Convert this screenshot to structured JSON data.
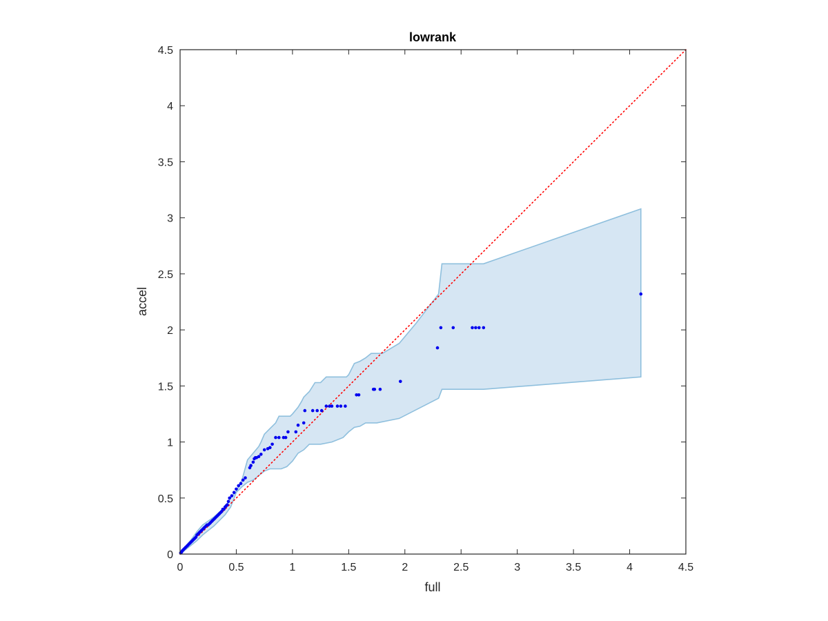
{
  "chart_data": {
    "type": "scatter",
    "title": "lowrank",
    "xlabel": "full",
    "ylabel": "accel",
    "xlim": [
      0,
      4.5
    ],
    "ylim": [
      0,
      4.5
    ],
    "xticks": [
      0,
      0.5,
      1,
      1.5,
      2,
      2.5,
      3,
      3.5,
      4,
      4.5
    ],
    "yticks": [
      0,
      0.5,
      1,
      1.5,
      2,
      2.5,
      3,
      3.5,
      4,
      4.5
    ],
    "xtick_labels": [
      "0",
      "0.5",
      "1",
      "1.5",
      "2",
      "2.5",
      "3",
      "3.5",
      "4",
      "4.5"
    ],
    "ytick_labels": [
      "0",
      "0.5",
      "1",
      "1.5",
      "2",
      "2.5",
      "3",
      "3.5",
      "4",
      "4.5"
    ],
    "grid": false,
    "colors": {
      "points": "#0000ee",
      "diagonal": "#ff0000",
      "band_fill": "#d6e6f3",
      "band_edge": "#8ebfdd",
      "axes": "#262626"
    },
    "diagonal": {
      "x": [
        0,
        4.5
      ],
      "y": [
        0,
        4.5
      ],
      "style": "dotted"
    },
    "band": {
      "upper": [
        [
          0,
          0
        ],
        [
          0.05,
          0.07
        ],
        [
          0.1,
          0.13
        ],
        [
          0.15,
          0.2
        ],
        [
          0.2,
          0.26
        ],
        [
          0.3,
          0.33
        ],
        [
          0.4,
          0.42
        ],
        [
          0.45,
          0.5
        ],
        [
          0.5,
          0.56
        ],
        [
          0.55,
          0.66
        ],
        [
          0.6,
          0.84
        ],
        [
          0.65,
          0.9
        ],
        [
          0.7,
          0.96
        ],
        [
          0.72,
          1.0
        ],
        [
          0.75,
          1.07
        ],
        [
          0.8,
          1.12
        ],
        [
          0.85,
          1.17
        ],
        [
          0.88,
          1.23
        ],
        [
          0.98,
          1.23
        ],
        [
          1.0,
          1.25
        ],
        [
          1.05,
          1.31
        ],
        [
          1.08,
          1.36
        ],
        [
          1.1,
          1.4
        ],
        [
          1.12,
          1.42
        ],
        [
          1.15,
          1.45
        ],
        [
          1.2,
          1.53
        ],
        [
          1.25,
          1.53
        ],
        [
          1.3,
          1.58
        ],
        [
          1.48,
          1.58
        ],
        [
          1.5,
          1.6
        ],
        [
          1.55,
          1.7
        ],
        [
          1.6,
          1.72
        ],
        [
          1.65,
          1.75
        ],
        [
          1.7,
          1.79
        ],
        [
          1.8,
          1.79
        ],
        [
          1.95,
          1.88
        ],
        [
          2.1,
          2.06
        ],
        [
          2.3,
          2.32
        ],
        [
          2.33,
          2.59
        ],
        [
          2.7,
          2.59
        ],
        [
          4.1,
          3.08
        ]
      ],
      "lower": [
        [
          4.1,
          1.58
        ],
        [
          2.7,
          1.47
        ],
        [
          2.33,
          1.47
        ],
        [
          2.3,
          1.39
        ],
        [
          1.95,
          1.21
        ],
        [
          1.75,
          1.17
        ],
        [
          1.65,
          1.17
        ],
        [
          1.6,
          1.14
        ],
        [
          1.55,
          1.13
        ],
        [
          1.5,
          1.09
        ],
        [
          1.45,
          1.04
        ],
        [
          1.35,
          1.0
        ],
        [
          1.25,
          0.98
        ],
        [
          1.15,
          0.98
        ],
        [
          1.1,
          0.93
        ],
        [
          1.05,
          0.9
        ],
        [
          1.0,
          0.83
        ],
        [
          0.95,
          0.78
        ],
        [
          0.9,
          0.76
        ],
        [
          0.85,
          0.76
        ],
        [
          0.8,
          0.76
        ],
        [
          0.75,
          0.74
        ],
        [
          0.7,
          0.7
        ],
        [
          0.65,
          0.66
        ],
        [
          0.6,
          0.64
        ],
        [
          0.55,
          0.6
        ],
        [
          0.5,
          0.55
        ],
        [
          0.45,
          0.42
        ],
        [
          0.4,
          0.35
        ],
        [
          0.35,
          0.3
        ],
        [
          0.3,
          0.25
        ],
        [
          0.25,
          0.21
        ],
        [
          0.2,
          0.17
        ],
        [
          0.15,
          0.12
        ],
        [
          0.1,
          0.08
        ],
        [
          0.05,
          0.04
        ],
        [
          0,
          0
        ]
      ]
    },
    "series": [
      {
        "x": [
          0.005,
          0.01,
          0.015,
          0.02,
          0.03,
          0.04,
          0.05,
          0.06,
          0.07,
          0.08,
          0.09,
          0.1,
          0.11,
          0.12,
          0.13,
          0.14,
          0.15,
          0.16,
          0.17,
          0.18,
          0.19,
          0.2,
          0.21,
          0.22,
          0.23,
          0.24,
          0.25,
          0.26,
          0.27,
          0.28,
          0.29,
          0.3,
          0.31,
          0.32,
          0.33,
          0.34,
          0.35,
          0.36,
          0.37,
          0.38,
          0.39,
          0.4,
          0.41,
          0.42,
          0.43,
          0.44,
          0.46,
          0.48,
          0.5,
          0.52,
          0.54,
          0.56,
          0.58,
          0.62,
          0.63,
          0.65,
          0.66,
          0.67,
          0.68,
          0.7,
          0.72,
          0.75,
          0.78,
          0.8,
          0.82,
          0.85,
          0.88,
          0.92,
          0.94,
          0.96,
          1.03,
          1.05,
          1.1,
          1.11,
          1.18,
          1.22,
          1.26,
          1.3,
          1.33,
          1.35,
          1.4,
          1.43,
          1.47,
          1.57,
          1.59,
          1.72,
          1.73,
          1.78,
          1.96,
          2.29,
          2.32,
          2.43,
          2.6,
          2.63,
          2.66,
          2.7,
          4.1
        ],
        "y": [
          0.01,
          0.015,
          0.02,
          0.03,
          0.04,
          0.05,
          0.06,
          0.07,
          0.08,
          0.09,
          0.1,
          0.11,
          0.12,
          0.13,
          0.14,
          0.15,
          0.17,
          0.18,
          0.19,
          0.2,
          0.21,
          0.22,
          0.23,
          0.24,
          0.25,
          0.26,
          0.26,
          0.27,
          0.28,
          0.29,
          0.3,
          0.31,
          0.32,
          0.33,
          0.34,
          0.35,
          0.36,
          0.37,
          0.38,
          0.4,
          0.4,
          0.42,
          0.43,
          0.44,
          0.47,
          0.5,
          0.52,
          0.55,
          0.58,
          0.61,
          0.63,
          0.66,
          0.68,
          0.77,
          0.79,
          0.82,
          0.85,
          0.86,
          0.86,
          0.87,
          0.89,
          0.93,
          0.94,
          0.95,
          0.98,
          1.04,
          1.04,
          1.04,
          1.04,
          1.09,
          1.09,
          1.15,
          1.17,
          1.28,
          1.28,
          1.28,
          1.28,
          1.32,
          1.32,
          1.32,
          1.32,
          1.32,
          1.32,
          1.42,
          1.42,
          1.47,
          1.47,
          1.47,
          1.54,
          1.84,
          2.02,
          2.02,
          2.02,
          2.02,
          2.02,
          2.02,
          2.32
        ]
      }
    ]
  }
}
